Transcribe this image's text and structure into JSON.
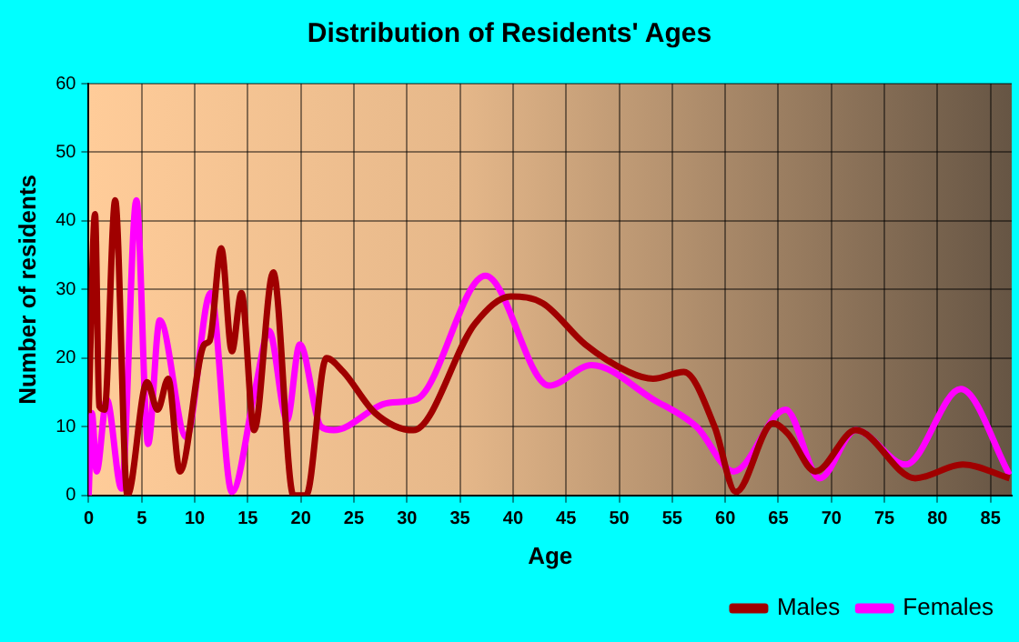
{
  "chart_data": {
    "type": "line",
    "title": "Distribution of Residents' Ages",
    "xlabel": "Age",
    "ylabel": "Number of residents",
    "xlim": [
      0,
      87
    ],
    "xticks": [
      0,
      5,
      10,
      15,
      20,
      25,
      30,
      35,
      40,
      45,
      50,
      55,
      60,
      65,
      70,
      75,
      80,
      85
    ],
    "ylim": [
      0,
      60
    ],
    "yticks": [
      0,
      10,
      20,
      30,
      40,
      50,
      60
    ],
    "grid": true,
    "legend": "bottom right",
    "marker": "none",
    "line_style": "solid",
    "series": [
      {
        "name": "Males",
        "color": "#a00000",
        "x": [
          0,
          0.6,
          1,
          1.5,
          2.5,
          3.65,
          5.5,
          6.5,
          7.5,
          8.6,
          10.9,
          11.4,
          12.5,
          13.5,
          14.4,
          15.6,
          17.4,
          19.3,
          20.5,
          22.4,
          24,
          27,
          30.6,
          36.4,
          39.8,
          42.8,
          46.8,
          50.9,
          53.2,
          56.1,
          59,
          61,
          64.5,
          65.9,
          68.5,
          72.3,
          77.9,
          82.4,
          86.8
        ],
        "values": [
          12,
          41,
          13,
          12.5,
          43,
          0,
          16.5,
          12.5,
          17,
          3.5,
          22,
          22.5,
          36,
          21,
          29.5,
          9.5,
          32.5,
          0,
          0,
          20,
          18,
          12,
          9.5,
          25,
          29,
          28,
          22,
          18,
          17,
          18,
          10,
          0.5,
          10.5,
          9,
          3.5,
          9.5,
          2.5,
          4.5,
          2.5
        ]
      },
      {
        "name": "Females",
        "color": "#ff00ff",
        "x": [
          0,
          0.3,
          0.75,
          1.7,
          3.1,
          4.5,
          5.6,
          6.7,
          9.2,
          11.5,
          13.5,
          15.7,
          17,
          18.7,
          19.9,
          21.9,
          23.1,
          28.3,
          30.9,
          37.4,
          43.4,
          47.4,
          53.2,
          57.3,
          60.8,
          65.7,
          68.9,
          72.3,
          77,
          82.2,
          86.8
        ],
        "values": [
          0,
          12,
          3.5,
          14,
          1,
          43,
          7.5,
          25.5,
          8.5,
          29.5,
          0.5,
          15.5,
          24,
          11,
          22,
          10,
          9.5,
          13.5,
          14,
          32,
          16,
          19,
          14,
          10,
          3.5,
          12.5,
          2.5,
          9.5,
          4.5,
          15.5,
          3
        ]
      }
    ]
  }
}
